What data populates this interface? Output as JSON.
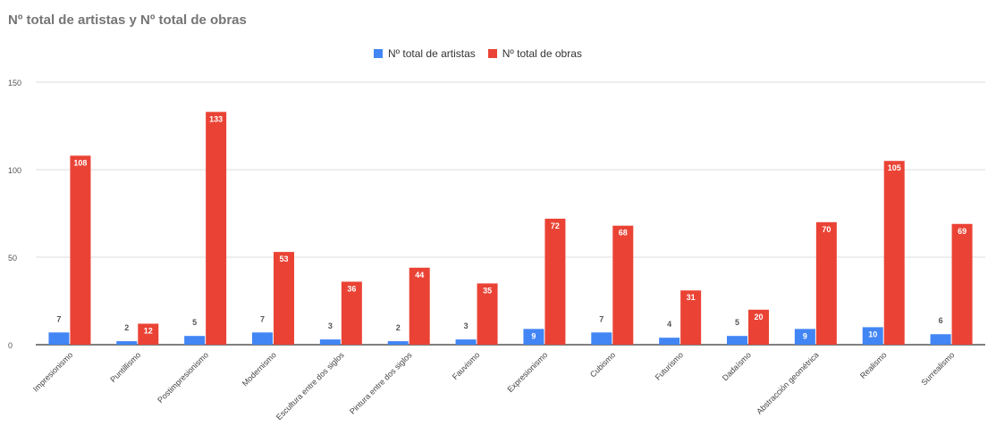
{
  "chart_data": {
    "type": "bar",
    "title": "Nº total de artistas y Nº total de obras",
    "categories": [
      "Impresionismo",
      "Puntillismo",
      "Postimpresionismo",
      "Modernismo",
      "Escultura entre dos siglos",
      "Pintura entre dos siglos",
      "Fauvismo",
      "Expresionismo",
      "Cubismo",
      "Futurismo",
      "Dadaísmo",
      "Abstracción geométrica",
      "Realismo",
      "Surrealismo"
    ],
    "series": [
      {
        "name": "Nº total de artistas",
        "color": "#4285f4",
        "values": [
          7,
          2,
          5,
          7,
          3,
          2,
          3,
          9,
          7,
          4,
          5,
          9,
          10,
          6
        ]
      },
      {
        "name": "Nº total de obras",
        "color": "#ea4335",
        "values": [
          108,
          12,
          133,
          53,
          36,
          44,
          35,
          72,
          68,
          31,
          20,
          70,
          105,
          69
        ]
      }
    ],
    "yticks": [
      0,
      50,
      100,
      150
    ],
    "ylim": [
      0,
      150
    ],
    "legend_position": "top",
    "grid": true
  }
}
